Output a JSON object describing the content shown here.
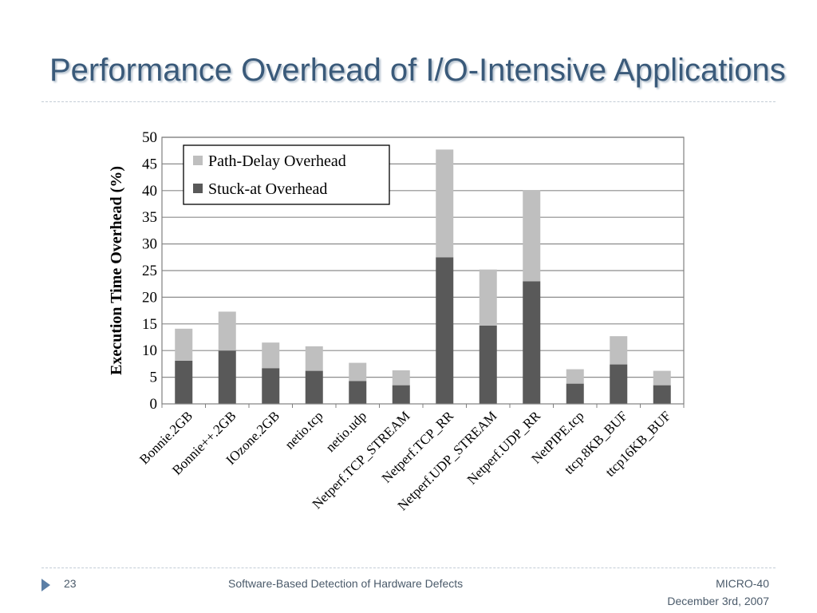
{
  "slide": {
    "title": "Performance Overhead of I/O-Intensive Applications",
    "number": "23",
    "footer_center": "Software-Based Detection of Hardware Defects",
    "footer_right_line1": "MICRO-40",
    "footer_right_line2": "December 3rd, 2007"
  },
  "chart_data": {
    "type": "bar",
    "stacked": true,
    "title": "",
    "xlabel": "",
    "ylabel": "Execution Time Overhead  (%)",
    "ylim": [
      0,
      50
    ],
    "yticks": [
      0,
      5,
      10,
      15,
      20,
      25,
      30,
      35,
      40,
      45,
      50
    ],
    "grid": true,
    "legend_position": "top-left",
    "categories": [
      "Bonnie.2GB",
      "Bonnie++.2GB",
      "IOzone.2GB",
      "netio.tcp",
      "netio.udp",
      "Netperf.TCP_STREAM",
      "Netperf.TCP_RR",
      "Netperf.UDP_STREAM",
      "Netperf.UDP_RR",
      "NetPIPE.tcp",
      "ttcp.8KB_BUF",
      "ttcp16KB_BUF"
    ],
    "series": [
      {
        "name": "Stuck-at Overhead",
        "color": "#595959",
        "values": [
          8.1,
          10.0,
          6.7,
          6.2,
          4.3,
          3.5,
          27.5,
          14.7,
          23.0,
          3.8,
          7.4,
          3.5
        ]
      },
      {
        "name": "Path-Delay Overhead",
        "color": "#bfbfbf",
        "values": [
          6.0,
          7.3,
          4.8,
          4.6,
          3.4,
          2.8,
          20.2,
          10.5,
          17.1,
          2.7,
          5.3,
          2.7
        ]
      }
    ],
    "legend_order": [
      "Path-Delay Overhead",
      "Stuck-at Overhead"
    ]
  }
}
